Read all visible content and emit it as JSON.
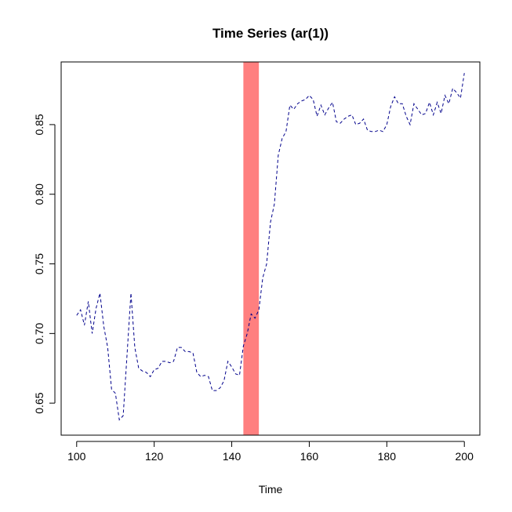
{
  "chart_data": {
    "type": "line",
    "title": "Time Series (ar(1))",
    "xlabel": "Time",
    "ylabel": "",
    "xlim": [
      96,
      204
    ],
    "ylim": [
      0.627,
      0.895
    ],
    "x_ticks": [
      100,
      120,
      140,
      160,
      180,
      200
    ],
    "x_tick_labels": [
      "100",
      "120",
      "140",
      "160",
      "180",
      "200"
    ],
    "y_ticks": [
      0.65,
      0.7,
      0.75,
      0.8,
      0.85
    ],
    "y_tick_labels": [
      "0.65",
      "0.70",
      "0.75",
      "0.80",
      "0.85"
    ],
    "grid": false,
    "legend": "none",
    "highlight_band": {
      "x_start": 143,
      "x_end": 147,
      "color": "#FF7F7F"
    },
    "series": [
      {
        "color": "#00008B",
        "line_style": "dashed",
        "x": [
          100,
          101,
          102,
          103,
          104,
          105,
          106,
          107,
          108,
          109,
          110,
          111,
          112,
          113,
          114,
          115,
          116,
          117,
          118,
          119,
          120,
          121,
          122,
          123,
          124,
          125,
          126,
          127,
          128,
          129,
          130,
          131,
          132,
          133,
          134,
          135,
          136,
          137,
          138,
          139,
          140,
          141,
          142,
          143,
          144,
          145,
          146,
          147,
          148,
          149,
          150,
          151,
          152,
          153,
          154,
          155,
          156,
          157,
          158,
          159,
          160,
          161,
          162,
          163,
          164,
          165,
          166,
          167,
          168,
          169,
          170,
          171,
          172,
          173,
          174,
          175,
          176,
          177,
          178,
          179,
          180,
          181,
          182,
          183,
          184,
          185,
          186,
          187,
          188,
          189,
          190,
          191,
          192,
          193,
          194,
          195,
          196,
          197,
          198,
          199,
          200
        ],
        "values": [
          0.713,
          0.717,
          0.706,
          0.723,
          0.7,
          0.718,
          0.729,
          0.705,
          0.69,
          0.66,
          0.657,
          0.638,
          0.641,
          0.685,
          0.729,
          0.69,
          0.675,
          0.673,
          0.672,
          0.669,
          0.674,
          0.675,
          0.68,
          0.68,
          0.679,
          0.68,
          0.69,
          0.69,
          0.687,
          0.687,
          0.686,
          0.672,
          0.669,
          0.67,
          0.669,
          0.659,
          0.659,
          0.661,
          0.666,
          0.68,
          0.676,
          0.671,
          0.67,
          0.691,
          0.7,
          0.714,
          0.711,
          0.717,
          0.74,
          0.75,
          0.78,
          0.793,
          0.828,
          0.84,
          0.845,
          0.864,
          0.861,
          0.865,
          0.867,
          0.868,
          0.871,
          0.868,
          0.856,
          0.864,
          0.857,
          0.862,
          0.866,
          0.852,
          0.851,
          0.854,
          0.856,
          0.857,
          0.85,
          0.851,
          0.854,
          0.846,
          0.845,
          0.845,
          0.846,
          0.845,
          0.85,
          0.863,
          0.87,
          0.865,
          0.865,
          0.856,
          0.85,
          0.865,
          0.861,
          0.857,
          0.858,
          0.866,
          0.857,
          0.866,
          0.858,
          0.871,
          0.865,
          0.876,
          0.873,
          0.869,
          0.887
        ]
      }
    ]
  }
}
